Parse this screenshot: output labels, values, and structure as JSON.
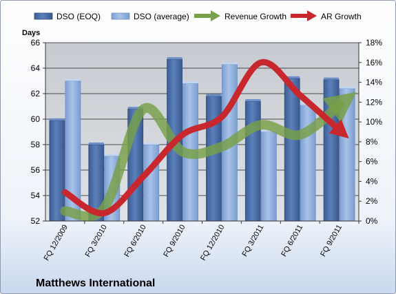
{
  "chart_data": {
    "type": "bar",
    "title": "Matthews International",
    "ylabel_left": "Days",
    "categories": [
      "FQ 12/2009",
      "FQ 3/2010",
      "FQ 6/2010",
      "FQ 9/2010",
      "FQ 12/2010",
      "FQ 3/2011",
      "FQ 6/2011",
      "FQ 9/2011"
    ],
    "y_left": {
      "min": 52,
      "max": 66,
      "ticks": [
        "52",
        "54",
        "56",
        "58",
        "60",
        "62",
        "64",
        "66"
      ]
    },
    "y_right": {
      "min": 0,
      "max": 18,
      "ticks": [
        "0%",
        "2%",
        "4%",
        "6%",
        "8%",
        "10%",
        "12%",
        "14%",
        "16%",
        "18%"
      ]
    },
    "bar_series": [
      {
        "name": "DSO (EOQ)",
        "axis": "left",
        "color": "#4a6fa8",
        "values": [
          59.9,
          58.0,
          60.8,
          64.7,
          61.8,
          61.4,
          63.2,
          63.1
        ]
      },
      {
        "name": "DSO (average)",
        "axis": "left",
        "color": "#95b3df",
        "values": [
          63.0,
          57.1,
          58.0,
          62.8,
          64.3,
          59.0,
          61.1,
          62.4
        ]
      }
    ],
    "line_series": [
      {
        "name": "Revenue Growth",
        "axis": "right",
        "color": "#78a048",
        "values": [
          1.0,
          1.3,
          11.3,
          7.0,
          7.5,
          9.7,
          8.7,
          11.7
        ]
      },
      {
        "name": "AR Growth",
        "axis": "right",
        "color": "#c8272e",
        "values": [
          2.9,
          0.8,
          4.5,
          8.7,
          10.5,
          16.0,
          12.7,
          9.2
        ]
      }
    ],
    "legend_position": "top",
    "gridlines": true
  }
}
